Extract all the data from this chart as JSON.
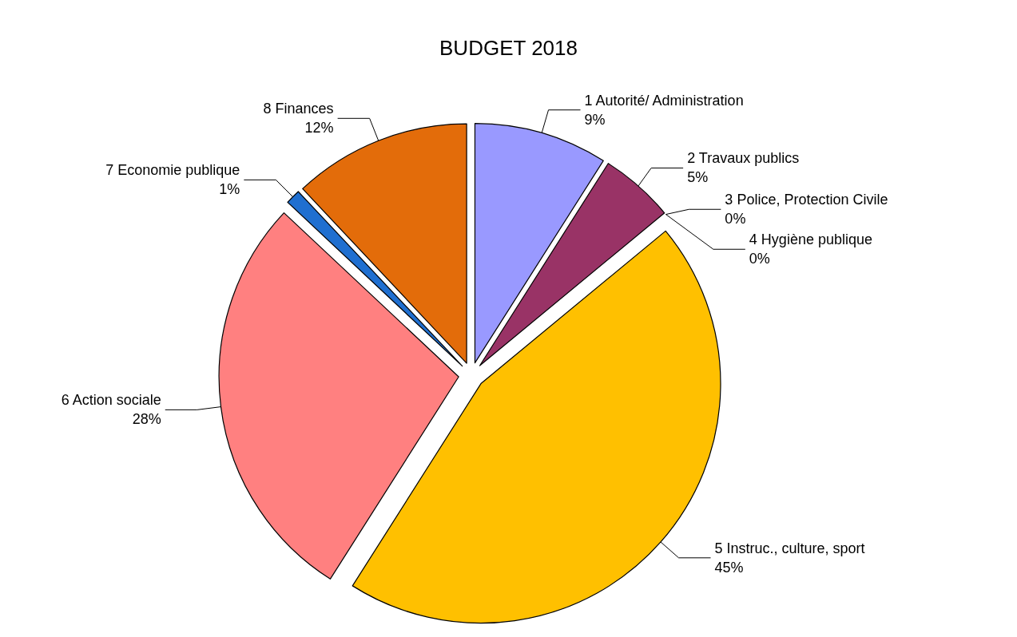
{
  "chart_data": {
    "type": "pie",
    "title": "BUDGET 2018",
    "categories": [
      "1 Autorité/ Administration",
      "2 Travaux publics",
      "3 Police, Protection Civile",
      "4 Hygiène publique",
      "5 Instruc., culture, sport",
      "6 Action sociale",
      "7 Economie publique",
      "8 Finances"
    ],
    "values": [
      9,
      5,
      0,
      0,
      45,
      28,
      1,
      12
    ],
    "value_labels": [
      "9%",
      "5%",
      "0%",
      "0%",
      "45%",
      "28%",
      "1%",
      "12%"
    ],
    "colors": [
      "#9999ff",
      "#993366",
      "#1e6b3c",
      "#2e8b57",
      "#ffc000",
      "#ff8080",
      "#1f6fd0",
      "#e36c0a"
    ],
    "legend": false
  }
}
